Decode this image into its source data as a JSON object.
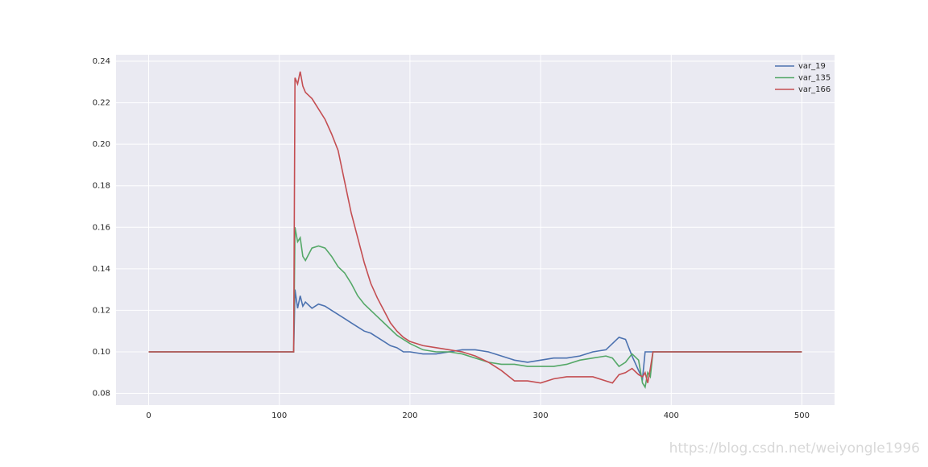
{
  "chart_data": {
    "type": "line",
    "x": [
      0,
      110,
      111,
      112,
      114,
      116,
      118,
      120,
      125,
      130,
      135,
      140,
      145,
      150,
      155,
      160,
      165,
      170,
      175,
      180,
      185,
      190,
      195,
      200,
      210,
      220,
      230,
      240,
      250,
      260,
      270,
      280,
      290,
      300,
      310,
      320,
      330,
      340,
      350,
      355,
      360,
      365,
      370,
      375,
      378,
      380,
      382,
      384,
      386,
      390,
      500
    ],
    "series": [
      {
        "name": "var_19",
        "color": "#4c72b0",
        "values": [
          0.1,
          0.1,
          0.1,
          0.13,
          0.121,
          0.127,
          0.122,
          0.124,
          0.121,
          0.123,
          0.122,
          0.12,
          0.118,
          0.116,
          0.114,
          0.112,
          0.11,
          0.109,
          0.107,
          0.105,
          0.103,
          0.102,
          0.1,
          0.1,
          0.099,
          0.099,
          0.1,
          0.101,
          0.101,
          0.1,
          0.098,
          0.096,
          0.095,
          0.096,
          0.097,
          0.097,
          0.098,
          0.1,
          0.101,
          0.104,
          0.107,
          0.106,
          0.098,
          0.091,
          0.087,
          0.1,
          0.1,
          0.1,
          0.1,
          0.1,
          0.1
        ]
      },
      {
        "name": "var_135",
        "color": "#55a868",
        "values": [
          0.1,
          0.1,
          0.1,
          0.16,
          0.153,
          0.155,
          0.146,
          0.144,
          0.15,
          0.151,
          0.15,
          0.146,
          0.141,
          0.138,
          0.133,
          0.127,
          0.123,
          0.12,
          0.117,
          0.114,
          0.111,
          0.108,
          0.106,
          0.104,
          0.101,
          0.1,
          0.1,
          0.099,
          0.097,
          0.095,
          0.094,
          0.094,
          0.093,
          0.093,
          0.093,
          0.094,
          0.096,
          0.097,
          0.098,
          0.097,
          0.093,
          0.095,
          0.099,
          0.096,
          0.085,
          0.083,
          0.09,
          0.088,
          0.1,
          0.1,
          0.1
        ]
      },
      {
        "name": "var_166",
        "color": "#c44e52",
        "values": [
          0.1,
          0.1,
          0.1,
          0.232,
          0.229,
          0.235,
          0.228,
          0.225,
          0.222,
          0.217,
          0.212,
          0.205,
          0.197,
          0.182,
          0.167,
          0.155,
          0.143,
          0.133,
          0.126,
          0.12,
          0.114,
          0.11,
          0.107,
          0.105,
          0.103,
          0.102,
          0.101,
          0.1,
          0.098,
          0.095,
          0.091,
          0.086,
          0.086,
          0.085,
          0.087,
          0.088,
          0.088,
          0.088,
          0.086,
          0.085,
          0.089,
          0.09,
          0.092,
          0.089,
          0.088,
          0.09,
          0.085,
          0.092,
          0.1,
          0.1,
          0.1
        ]
      }
    ],
    "xlim": [
      -25,
      525
    ],
    "xticks": [
      0,
      100,
      200,
      300,
      400,
      500
    ],
    "ylim": [
      0.0744,
      0.2431
    ],
    "yticks": [
      0.08,
      {
        "value": 0.1,
        "label": "0.10"
      },
      0.12,
      0.14,
      0.16,
      0.18,
      {
        "value": 0.2,
        "label": "0.20"
      },
      0.22,
      0.24
    ],
    "grid": true,
    "legend": "upper right",
    "background": "#eaeaf2",
    "watermark": "https://blog.csdn.net/weiyongle1996"
  }
}
